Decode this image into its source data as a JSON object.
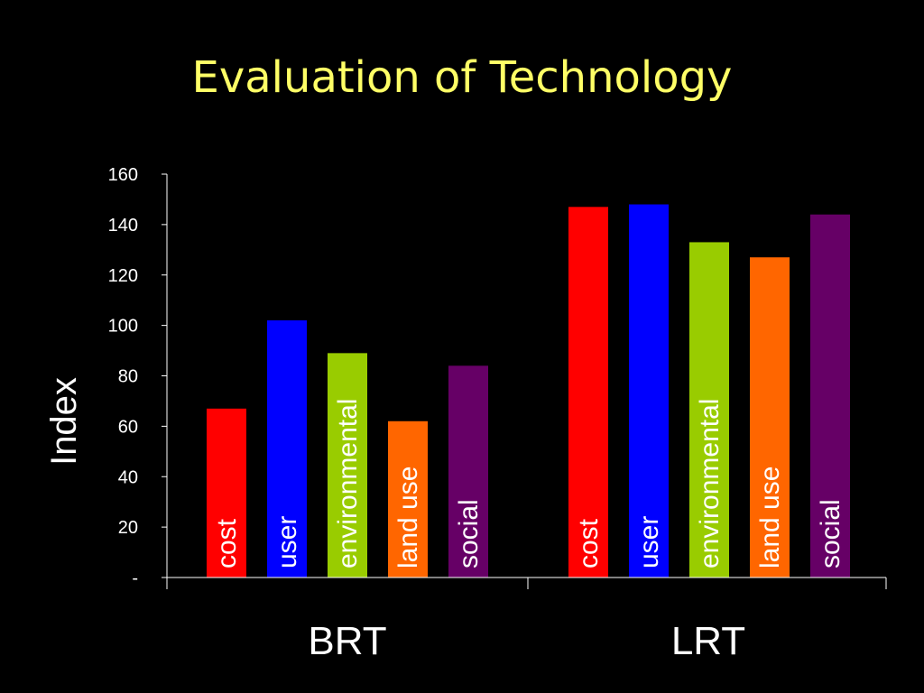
{
  "slide": {
    "title": "Evaluation of Technology"
  },
  "chart_data": {
    "type": "bar",
    "title": "Evaluation of Technology",
    "xlabel": "",
    "ylabel": "Index",
    "ylim": [
      0,
      160
    ],
    "yticks": [
      {
        "value": 0,
        "label": "-"
      },
      {
        "value": 20,
        "label": "20"
      },
      {
        "value": 40,
        "label": "40"
      },
      {
        "value": 60,
        "label": "60"
      },
      {
        "value": 80,
        "label": "80"
      },
      {
        "value": 100,
        "label": "100"
      },
      {
        "value": 120,
        "label": "120"
      },
      {
        "value": 140,
        "label": "140"
      },
      {
        "value": 160,
        "label": "160"
      }
    ],
    "categories": [
      "BRT",
      "LRT"
    ],
    "series": [
      {
        "name": "cost",
        "color": "#FF0000",
        "values": [
          67,
          147
        ]
      },
      {
        "name": "user",
        "color": "#0000FF",
        "values": [
          102,
          148
        ]
      },
      {
        "name": "environmental",
        "color": "#99CC00",
        "values": [
          89,
          133
        ]
      },
      {
        "name": "land use",
        "color": "#FF6600",
        "values": [
          62,
          127
        ]
      },
      {
        "name": "social",
        "color": "#660066",
        "values": [
          84,
          144
        ]
      }
    ],
    "grid": false,
    "legend": "none",
    "bar_labels": "inside-vertical"
  }
}
